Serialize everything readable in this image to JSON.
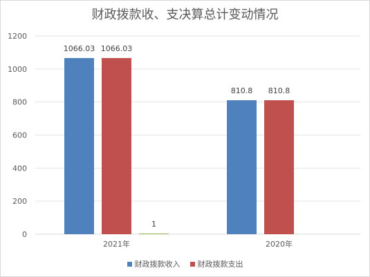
{
  "chart_data": {
    "type": "bar",
    "title": "财政拨款收、支决算总计变动情况",
    "categories": [
      "2021年",
      "2020年"
    ],
    "series": [
      {
        "name": "财政拨款收入",
        "color": "#4f81bd",
        "values": [
          1066.03,
          810.8
        ],
        "labels": [
          "1066.03",
          "810.8"
        ]
      },
      {
        "name": "财政拨款支出",
        "color": "#c0504d",
        "values": [
          1066.03,
          810.8
        ],
        "labels": [
          "1066.03",
          "810.8"
        ]
      },
      {
        "name": "",
        "color": "#9bbb59",
        "values": [
          1,
          null
        ],
        "labels": [
          "1",
          ""
        ]
      }
    ],
    "ylim": [
      0,
      1200
    ],
    "yticks": [
      0,
      200,
      400,
      600,
      800,
      1000,
      1200
    ],
    "grid": true,
    "legend": "bottom"
  }
}
